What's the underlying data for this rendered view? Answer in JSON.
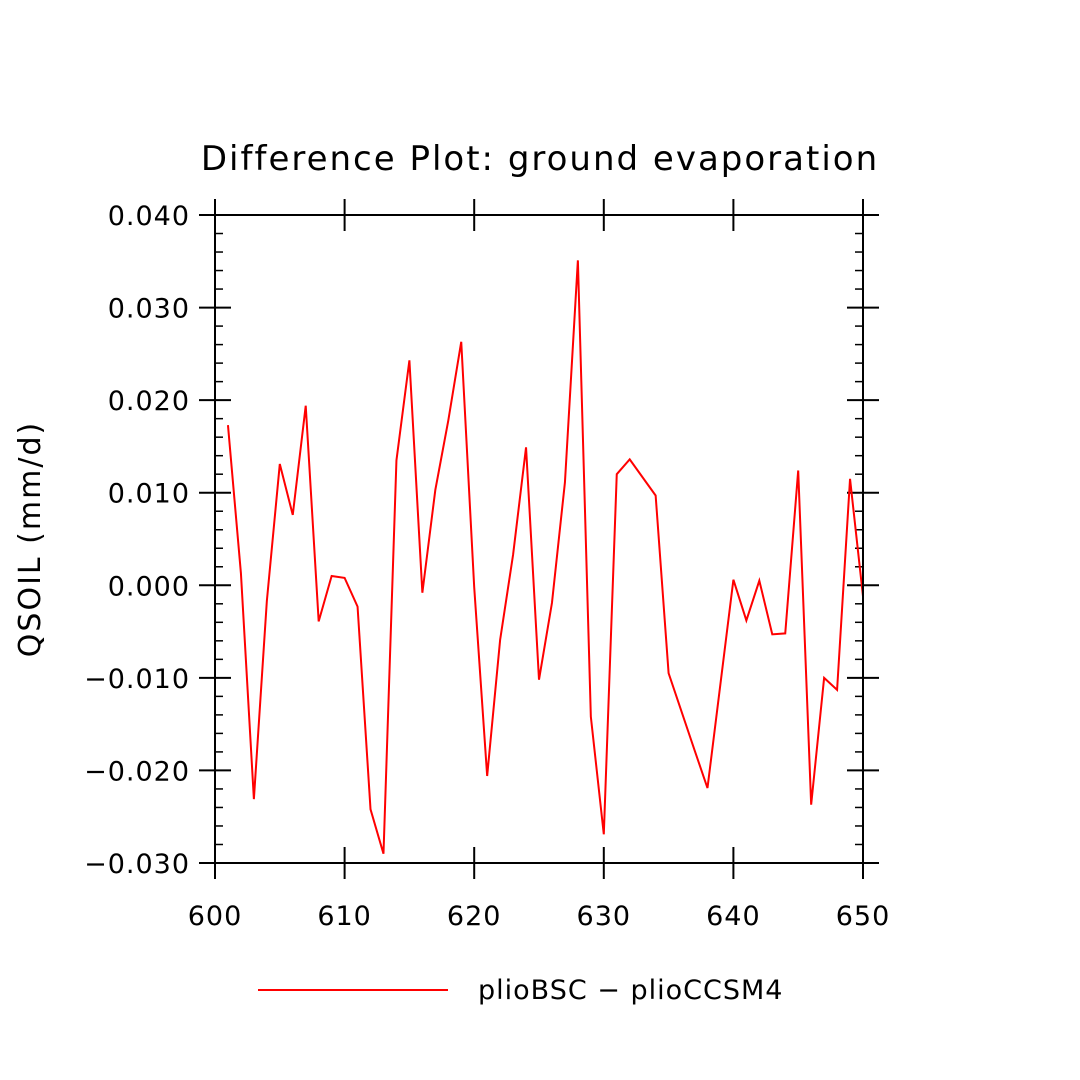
{
  "chart_data": {
    "type": "line",
    "title": "Difference Plot: ground evaporation",
    "xlabel": "",
    "ylabel": "QSOIL  (mm/d)",
    "xlim": [
      600,
      650
    ],
    "ylim": [
      -0.03,
      0.04
    ],
    "x_ticks": [
      600,
      610,
      620,
      630,
      640,
      650
    ],
    "x_tick_labels": [
      "600",
      "610",
      "620",
      "630",
      "640",
      "650"
    ],
    "y_ticks": [
      -0.03,
      -0.02,
      -0.01,
      0.0,
      0.01,
      0.02,
      0.03,
      0.04
    ],
    "y_tick_labels": [
      "−0.030",
      "−0.020",
      "−0.010",
      "0.000",
      "0.010",
      "0.020",
      "0.030",
      "0.040"
    ],
    "legend_position": "bottom-center",
    "grid": false,
    "series": [
      {
        "name": "plioBSC − plioCCSM4",
        "color": "#ff0000",
        "x": [
          601,
          602,
          603,
          604,
          605,
          606,
          607,
          608,
          609,
          610,
          611,
          612,
          613,
          614,
          615,
          616,
          617,
          618,
          619,
          620,
          621,
          622,
          623,
          624,
          625,
          626,
          627,
          628,
          629,
          630,
          631,
          632,
          634,
          635,
          637,
          638,
          640,
          641,
          642,
          643,
          644,
          645,
          646,
          647,
          648,
          649,
          650
        ],
        "values": [
          0.0173,
          0.0013,
          -0.0231,
          -0.0017,
          0.0131,
          0.0076,
          0.0194,
          -0.0039,
          0.001,
          0.0008,
          -0.0023,
          -0.0242,
          -0.029,
          0.0135,
          0.0243,
          -0.0008,
          0.0103,
          0.0178,
          0.0263,
          -0.0002,
          -0.0206,
          -0.0059,
          0.0033,
          0.0149,
          -0.0102,
          -0.0019,
          0.0111,
          0.0351,
          -0.0142,
          -0.0269,
          0.012,
          0.0136,
          0.0097,
          -0.0095,
          -0.0178,
          -0.0219,
          0.0006,
          -0.0038,
          0.0005,
          -0.0053,
          -0.0052,
          0.0124,
          -0.0237,
          -0.01,
          -0.0113,
          0.0115,
          -0.0012
        ]
      }
    ]
  }
}
